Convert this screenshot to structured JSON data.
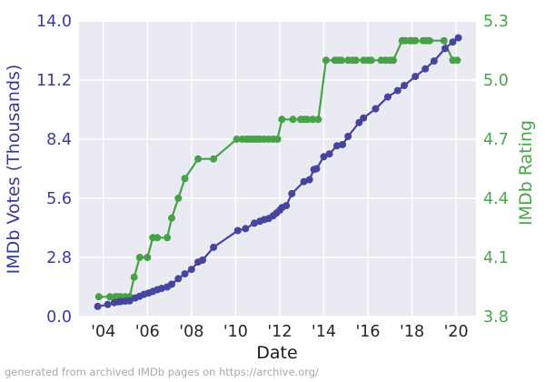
{
  "figure": {
    "footer": "generated from archived IMDb pages on https://archive.org/",
    "xlabel": "Date",
    "ylabel_left": "IMDb Votes (Thousands)",
    "ylabel_right": "IMDb Rating"
  },
  "colors": {
    "votes_line": "#45459e",
    "votes_text": "#3b3b9b",
    "rating_line": "#47a147",
    "rating_text": "#4aa44a",
    "plot_bg": "#eaeaf2",
    "grid": "#ffffff",
    "x_tick_text": "#262626",
    "xlabel_text": "#1a1a1a",
    "footer_text": "#a8a8a8"
  },
  "chart_data": {
    "type": "line",
    "title": "",
    "xlabel": "Date",
    "grid": true,
    "legend": "none",
    "xlim": [
      2002.9,
      2020.9
    ],
    "x_ticks": [
      {
        "year": 2004,
        "label": "'04"
      },
      {
        "year": 2006,
        "label": "'06"
      },
      {
        "year": 2008,
        "label": "'08"
      },
      {
        "year": 2010,
        "label": "'10"
      },
      {
        "year": 2012,
        "label": "'12"
      },
      {
        "year": 2014,
        "label": "'14"
      },
      {
        "year": 2016,
        "label": "'16"
      },
      {
        "year": 2018,
        "label": "'18"
      },
      {
        "year": 2020,
        "label": "'20"
      }
    ],
    "series": [
      {
        "name": "IMDb Rating",
        "axis": "right",
        "ylim": [
          3.8,
          5.3
        ],
        "y_ticks": [
          {
            "value": 3.8,
            "label": "3.8"
          },
          {
            "value": 4.1,
            "label": "4.1"
          },
          {
            "value": 4.4,
            "label": "4.4"
          },
          {
            "value": 4.7,
            "label": "4.7"
          },
          {
            "value": 5.0,
            "label": "5.0"
          },
          {
            "value": 5.3,
            "label": "5.3"
          }
        ],
        "points": [
          [
            2003.8,
            3.9
          ],
          [
            2004.3,
            3.9
          ],
          [
            2004.55,
            3.9
          ],
          [
            2004.7,
            3.9
          ],
          [
            2004.8,
            3.9
          ],
          [
            2005.0,
            3.9
          ],
          [
            2005.2,
            3.9
          ],
          [
            2005.4,
            4.0
          ],
          [
            2005.65,
            4.1
          ],
          [
            2006.0,
            4.1
          ],
          [
            2006.25,
            4.2
          ],
          [
            2006.45,
            4.2
          ],
          [
            2006.9,
            4.2
          ],
          [
            2007.1,
            4.3
          ],
          [
            2007.4,
            4.4
          ],
          [
            2007.7,
            4.5
          ],
          [
            2008.3,
            4.6
          ],
          [
            2009.0,
            4.6
          ],
          [
            2010.05,
            4.7
          ],
          [
            2010.3,
            4.7
          ],
          [
            2010.5,
            4.7
          ],
          [
            2010.65,
            4.7
          ],
          [
            2010.8,
            4.7
          ],
          [
            2010.95,
            4.7
          ],
          [
            2011.1,
            4.7
          ],
          [
            2011.3,
            4.7
          ],
          [
            2011.5,
            4.7
          ],
          [
            2011.7,
            4.7
          ],
          [
            2011.9,
            4.7
          ],
          [
            2012.1,
            4.8
          ],
          [
            2012.6,
            4.8
          ],
          [
            2012.95,
            4.8
          ],
          [
            2013.1,
            4.8
          ],
          [
            2013.25,
            4.8
          ],
          [
            2013.5,
            4.8
          ],
          [
            2013.75,
            4.8
          ],
          [
            2014.1,
            5.1
          ],
          [
            2014.5,
            5.1
          ],
          [
            2014.65,
            5.1
          ],
          [
            2014.8,
            5.1
          ],
          [
            2015.1,
            5.1
          ],
          [
            2015.3,
            5.1
          ],
          [
            2015.45,
            5.1
          ],
          [
            2015.8,
            5.1
          ],
          [
            2016.0,
            5.1
          ],
          [
            2016.15,
            5.1
          ],
          [
            2016.6,
            5.1
          ],
          [
            2016.8,
            5.1
          ],
          [
            2017.0,
            5.1
          ],
          [
            2017.15,
            5.1
          ],
          [
            2017.55,
            5.2
          ],
          [
            2017.7,
            5.2
          ],
          [
            2017.9,
            5.2
          ],
          [
            2018.0,
            5.2
          ],
          [
            2018.15,
            5.2
          ],
          [
            2018.5,
            5.2
          ],
          [
            2018.65,
            5.2
          ],
          [
            2018.8,
            5.2
          ],
          [
            2019.45,
            5.2
          ],
          [
            2019.85,
            5.1
          ],
          [
            2020.05,
            5.1
          ]
        ]
      },
      {
        "name": "IMDb Votes (Thousands)",
        "axis": "left",
        "ylim": [
          0,
          14
        ],
        "y_ticks": [
          {
            "value": 0.0,
            "label": "0.0"
          },
          {
            "value": 2.8,
            "label": "2.8"
          },
          {
            "value": 5.6,
            "label": "5.6"
          },
          {
            "value": 8.4,
            "label": "8.4"
          },
          {
            "value": 11.2,
            "label": "11.2"
          },
          {
            "value": 14.0,
            "label": "14.0"
          }
        ],
        "points": [
          [
            2003.75,
            0.48
          ],
          [
            2004.2,
            0.57
          ],
          [
            2004.5,
            0.66
          ],
          [
            2004.7,
            0.7
          ],
          [
            2004.8,
            0.71
          ],
          [
            2005.0,
            0.73
          ],
          [
            2005.2,
            0.74
          ],
          [
            2005.45,
            0.88
          ],
          [
            2005.65,
            0.96
          ],
          [
            2005.85,
            1.05
          ],
          [
            2006.05,
            1.11
          ],
          [
            2006.25,
            1.19
          ],
          [
            2006.45,
            1.27
          ],
          [
            2006.65,
            1.33
          ],
          [
            2006.9,
            1.4
          ],
          [
            2007.1,
            1.53
          ],
          [
            2007.4,
            1.79
          ],
          [
            2007.7,
            2.02
          ],
          [
            2008.0,
            2.23
          ],
          [
            2008.3,
            2.58
          ],
          [
            2008.5,
            2.67
          ],
          [
            2009.0,
            3.28
          ],
          [
            2010.1,
            4.07
          ],
          [
            2010.45,
            4.16
          ],
          [
            2010.85,
            4.42
          ],
          [
            2011.1,
            4.51
          ],
          [
            2011.3,
            4.59
          ],
          [
            2011.5,
            4.64
          ],
          [
            2011.7,
            4.77
          ],
          [
            2011.85,
            4.9
          ],
          [
            2012.0,
            5.03
          ],
          [
            2012.1,
            5.16
          ],
          [
            2012.3,
            5.25
          ],
          [
            2012.55,
            5.82
          ],
          [
            2013.1,
            6.39
          ],
          [
            2013.35,
            6.48
          ],
          [
            2013.55,
            6.96
          ],
          [
            2013.67,
            7.0
          ],
          [
            2014.0,
            7.57
          ],
          [
            2014.25,
            7.7
          ],
          [
            2014.6,
            8.09
          ],
          [
            2014.85,
            8.14
          ],
          [
            2015.1,
            8.53
          ],
          [
            2015.6,
            9.19
          ],
          [
            2015.8,
            9.4
          ],
          [
            2016.35,
            9.84
          ],
          [
            2016.9,
            10.4
          ],
          [
            2017.35,
            10.7
          ],
          [
            2017.65,
            10.94
          ],
          [
            2018.15,
            11.37
          ],
          [
            2018.6,
            11.73
          ],
          [
            2019.0,
            12.1
          ],
          [
            2019.5,
            12.69
          ],
          [
            2019.85,
            13.0
          ],
          [
            2020.1,
            13.2
          ]
        ]
      }
    ]
  }
}
